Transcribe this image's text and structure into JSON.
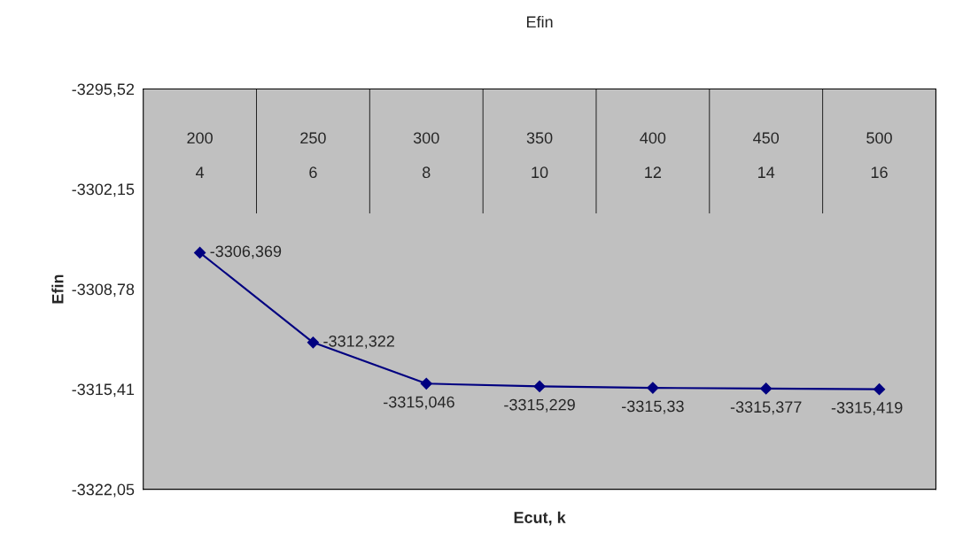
{
  "chart_data": {
    "type": "line",
    "title": "Efin",
    "xlabel": "Ecut, k",
    "ylabel": "Efin",
    "categories": [
      "200\n\n4",
      "250\n\n6",
      "300\n\n8",
      "350\n\n10",
      "400\n\n12",
      "450\n\n14",
      "500\n\n16"
    ],
    "series": [
      {
        "color": "#000080",
        "values": [
          -3306.369,
          -3312.322,
          -3315.046,
          -3315.229,
          -3315.33,
          -3315.377,
          -3315.419
        ],
        "value_labels": [
          "-3306,369",
          "-3312,322",
          "-3315,046",
          "-3315,229",
          "-3315,33",
          "-3315,377",
          "-3315,419"
        ]
      }
    ],
    "ylim": [
      -3322.05,
      -3295.52
    ],
    "yticks": [
      {
        "value": -3322.05,
        "label": "-3322,05"
      },
      {
        "value": -3315.41,
        "label": "-3315,41"
      },
      {
        "value": -3308.78,
        "label": "-3308,78"
      },
      {
        "value": -3302.15,
        "label": "-3302,15"
      },
      {
        "value": -3295.52,
        "label": "-3295,52"
      }
    ],
    "marker": "diamond",
    "line_style": "solid",
    "grid": false,
    "legend": false
  }
}
